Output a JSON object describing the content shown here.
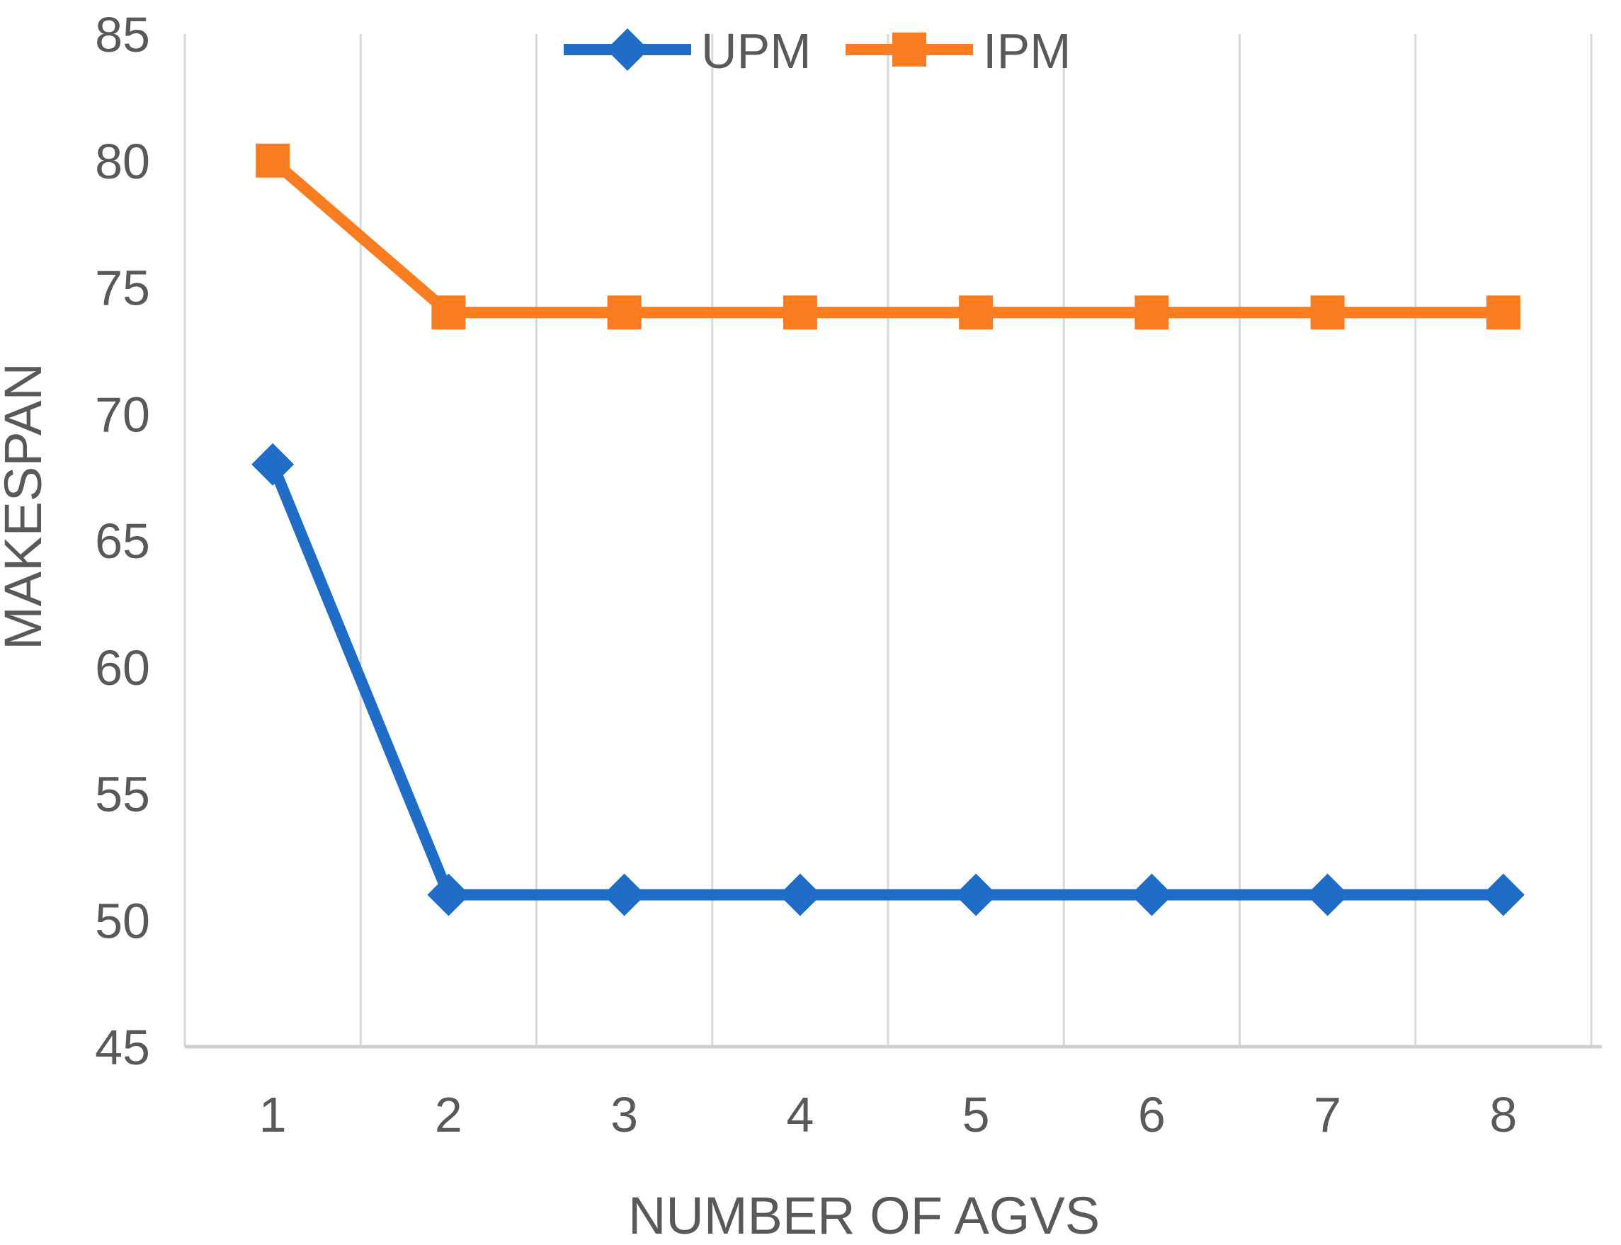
{
  "chart_data": {
    "type": "line",
    "x_categories": [
      "1",
      "2",
      "3",
      "4",
      "5",
      "6",
      "7",
      "8"
    ],
    "series": [
      {
        "name": "UPM",
        "values": [
          68,
          51,
          51,
          51,
          51,
          51,
          51,
          51
        ],
        "color": "#1F6DC6",
        "marker": "diamond"
      },
      {
        "name": "IPM",
        "values": [
          80,
          74,
          74,
          74,
          74,
          74,
          74,
          74
        ],
        "color": "#F97D20",
        "marker": "square"
      }
    ],
    "title": "",
    "xlabel": "NUMBER OF AGVS",
    "ylabel": "MAKESPAN",
    "ylim": [
      45,
      85
    ],
    "y_tick_step": 5,
    "y_tick_labels": [
      "45",
      "50",
      "55",
      "60",
      "65",
      "70",
      "75",
      "80",
      "85"
    ],
    "grid": "vertical-only",
    "legend_position": "top-center",
    "colors": {
      "gridline": "#D9D9D9",
      "axis_line": "#CFCFCF",
      "text": "#595959"
    }
  }
}
